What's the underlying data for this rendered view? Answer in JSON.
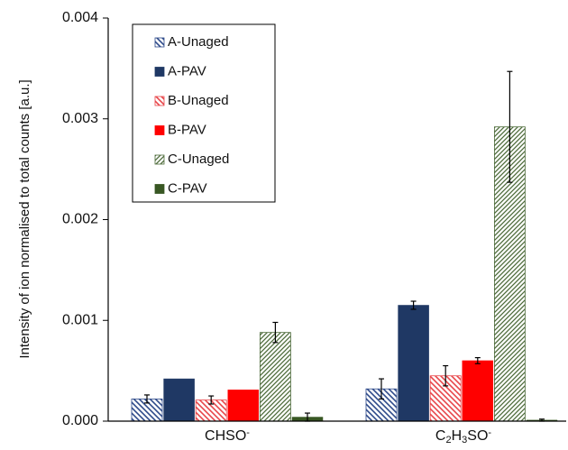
{
  "chart_data": {
    "type": "bar",
    "title": "",
    "xlabel": "",
    "ylabel": "Intensity of ion normalised to total counts [a.u.]",
    "ylim": [
      0,
      0.004
    ],
    "yticks": [
      "0.000",
      "0.001",
      "0.002",
      "0.003",
      "0.004"
    ],
    "grid": false,
    "legend_position": "top-left (inside plot)",
    "categories": [
      "CHSO-",
      "C2H3SO-"
    ],
    "category_display": [
      {
        "base": "CHSO",
        "sup": "-"
      },
      {
        "parts": [
          {
            "t": "C",
            "style": "normal"
          },
          {
            "t": "2",
            "style": "sub"
          },
          {
            "t": "H",
            "style": "normal"
          },
          {
            "t": "3",
            "style": "sub"
          },
          {
            "t": "SO",
            "style": "normal"
          },
          {
            "t": "-",
            "style": "sup"
          }
        ]
      }
    ],
    "series": [
      {
        "name": "A-Unaged",
        "values": [
          0.00022,
          0.00032
        ],
        "errors": [
          4e-05,
          0.0001
        ],
        "color": "#2e4a8a",
        "pattern": "hatch-back"
      },
      {
        "name": "A-PAV",
        "values": [
          0.00042,
          0.00115
        ],
        "errors": [
          0,
          4e-05
        ],
        "color": "#1f3864",
        "pattern": "solid"
      },
      {
        "name": "B-Unaged",
        "values": [
          0.00021,
          0.00045
        ],
        "errors": [
          4e-05,
          0.0001
        ],
        "color": "#e8464a",
        "pattern": "hatch-back"
      },
      {
        "name": "B-PAV",
        "values": [
          0.00031,
          0.0006
        ],
        "errors": [
          0,
          3e-05
        ],
        "color": "#ff0000",
        "pattern": "solid"
      },
      {
        "name": "C-Unaged",
        "values": [
          0.00088,
          0.00292
        ],
        "errors": [
          0.0001,
          0.00055
        ],
        "color": "#4d6b3a",
        "pattern": "hatch-fwd"
      },
      {
        "name": "C-PAV",
        "values": [
          4e-05,
          1e-05
        ],
        "errors": [
          4e-05,
          1e-05
        ],
        "color": "#385723",
        "pattern": "solid"
      }
    ]
  }
}
